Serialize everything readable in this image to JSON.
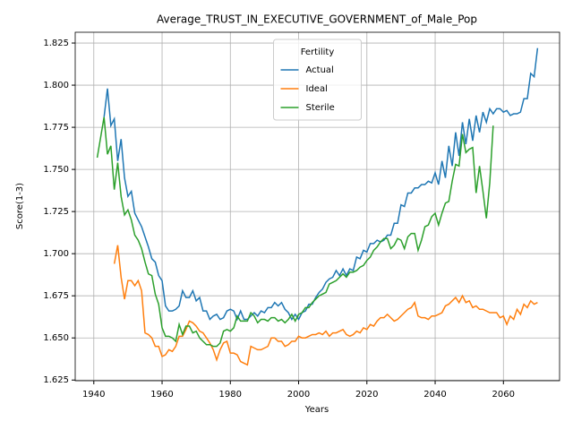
{
  "chart_data": {
    "type": "line",
    "title": "Average_TRUST_IN_EXECUTIVE_GOVERNMENT_of_Male_Pop",
    "xlabel": "Years",
    "ylabel": "Score(1-3)",
    "legend_title": "Fertility",
    "legend": "upper center",
    "grid": true,
    "xlim": [
      1934.55,
      2076.45
    ],
    "ylim": [
      1.6246,
      1.8314
    ],
    "xticks": [
      1940,
      1960,
      1980,
      2000,
      2020,
      2040,
      2060
    ],
    "yticks": [
      1.625,
      {
        "value": 1.65,
        "label": "1.650"
      },
      1.675,
      {
        "value": 1.7,
        "label": "1.700"
      },
      1.725,
      {
        "value": 1.75,
        "label": "1.750"
      },
      1.775,
      {
        "value": 1.8,
        "label": "1.800"
      },
      1.825
    ],
    "x": [
      1941,
      1942,
      1943,
      1944,
      1945,
      1946,
      1947,
      1948,
      1949,
      1950,
      1951,
      1952,
      1953,
      1954,
      1955,
      1956,
      1957,
      1958,
      1959,
      1960,
      1961,
      1962,
      1963,
      1964,
      1965,
      1966,
      1967,
      1968,
      1969,
      1970,
      1971,
      1972,
      1973,
      1974,
      1975,
      1976,
      1977,
      1978,
      1979,
      1980,
      1981,
      1982,
      1983,
      1984,
      1985,
      1986,
      1987,
      1988,
      1989,
      1990,
      1991,
      1992,
      1993,
      1994,
      1995,
      1996,
      1997,
      1998,
      1999,
      2000,
      2001,
      2002,
      2003,
      2004,
      2005,
      2006,
      2007,
      2008,
      2009,
      2010,
      2011,
      2012,
      2013,
      2014,
      2015,
      2016,
      2017,
      2018,
      2019,
      2020,
      2021,
      2022,
      2023,
      2024,
      2025,
      2026,
      2027,
      2028,
      2029,
      2030,
      2031,
      2032,
      2033,
      2034,
      2035,
      2036,
      2037,
      2038,
      2039,
      2040,
      2041,
      2042,
      2043,
      2044,
      2045,
      2046,
      2047,
      2048,
      2049,
      2050,
      2051,
      2052,
      2053,
      2054,
      2055,
      2056,
      2057,
      2058,
      2059,
      2060,
      2061,
      2062,
      2063,
      2064,
      2065,
      2066,
      2067,
      2068,
      2069,
      2070
    ],
    "series": [
      {
        "name": "Actual",
        "color": "#1f77b4",
        "values": [
          null,
          null,
          1.781,
          1.798,
          1.776,
          1.78,
          1.755,
          1.768,
          1.745,
          1.734,
          1.737,
          1.724,
          1.72,
          1.716,
          1.71,
          1.704,
          1.697,
          1.695,
          1.687,
          1.684,
          1.669,
          1.666,
          1.666,
          1.667,
          1.669,
          1.678,
          1.674,
          1.674,
          1.678,
          1.672,
          1.674,
          1.666,
          1.666,
          1.661,
          1.663,
          1.664,
          1.661,
          1.662,
          1.666,
          1.667,
          1.666,
          1.661,
          1.666,
          1.661,
          1.661,
          1.663,
          1.665,
          1.663,
          1.666,
          1.665,
          1.668,
          1.668,
          1.671,
          1.669,
          1.671,
          1.667,
          1.665,
          1.661,
          1.664,
          1.661,
          1.665,
          1.666,
          1.67,
          1.67,
          1.674,
          1.677,
          1.679,
          1.683,
          1.685,
          1.686,
          1.69,
          1.687,
          1.691,
          1.687,
          1.691,
          1.69,
          1.698,
          1.697,
          1.702,
          1.701,
          1.706,
          1.706,
          1.708,
          1.707,
          1.708,
          1.711,
          1.711,
          1.718,
          1.718,
          1.729,
          1.728,
          1.736,
          1.736,
          1.739,
          1.739,
          1.741,
          1.741,
          1.743,
          1.742,
          1.748,
          1.741,
          1.755,
          1.745,
          1.764,
          1.752,
          1.772,
          1.758,
          1.778,
          1.765,
          1.78,
          1.767,
          1.782,
          1.772,
          1.784,
          1.778,
          1.786,
          1.783,
          1.786,
          1.786,
          1.784,
          1.785,
          1.782,
          1.783,
          1.783,
          1.784,
          1.792,
          1.792,
          1.807,
          1.805,
          1.822
        ]
      },
      {
        "name": "Ideal",
        "color": "#ff7f0e",
        "values": [
          null,
          null,
          null,
          null,
          null,
          1.694,
          1.705,
          1.686,
          1.673,
          1.684,
          1.684,
          1.681,
          1.684,
          1.678,
          1.653,
          1.652,
          1.65,
          1.645,
          1.645,
          1.639,
          1.64,
          1.643,
          1.642,
          1.645,
          1.651,
          1.651,
          1.655,
          1.66,
          1.659,
          1.657,
          1.654,
          1.653,
          1.65,
          1.647,
          1.643,
          1.637,
          1.643,
          1.647,
          1.648,
          1.641,
          1.641,
          1.64,
          1.636,
          1.635,
          1.634,
          1.645,
          1.644,
          1.643,
          1.643,
          1.644,
          1.645,
          1.65,
          1.65,
          1.648,
          1.648,
          1.645,
          1.646,
          1.648,
          1.648,
          1.651,
          1.65,
          1.65,
          1.651,
          1.652,
          1.652,
          1.653,
          1.652,
          1.654,
          1.651,
          1.653,
          1.653,
          1.654,
          1.655,
          1.652,
          1.651,
          1.652,
          1.654,
          1.653,
          1.656,
          1.655,
          1.658,
          1.657,
          1.66,
          1.662,
          1.662,
          1.664,
          1.662,
          1.66,
          1.661,
          1.663,
          1.665,
          1.667,
          1.668,
          1.671,
          1.663,
          1.662,
          1.662,
          1.661,
          1.663,
          1.663,
          1.664,
          1.665,
          1.669,
          1.67,
          1.672,
          1.674,
          1.671,
          1.675,
          1.671,
          1.672,
          1.668,
          1.669,
          1.667,
          1.667,
          1.666,
          1.665,
          1.665,
          1.665,
          1.662,
          1.663,
          1.658,
          1.663,
          1.661,
          1.667,
          1.664,
          1.67,
          1.668,
          1.672,
          1.67,
          1.671
        ]
      },
      {
        "name": "Sterile",
        "color": "#2ca02c",
        "values": [
          1.757,
          1.769,
          1.781,
          1.759,
          1.764,
          1.738,
          1.754,
          1.734,
          1.723,
          1.726,
          1.72,
          1.711,
          1.708,
          1.703,
          1.695,
          1.688,
          1.687,
          1.676,
          1.67,
          1.656,
          1.651,
          1.651,
          1.65,
          1.648,
          1.658,
          1.652,
          1.657,
          1.657,
          1.653,
          1.654,
          1.65,
          1.648,
          1.646,
          1.646,
          1.645,
          1.645,
          1.647,
          1.654,
          1.655,
          1.654,
          1.656,
          1.663,
          1.66,
          1.66,
          1.66,
          1.665,
          1.663,
          1.659,
          1.661,
          1.661,
          1.66,
          1.662,
          1.662,
          1.66,
          1.661,
          1.659,
          1.661,
          1.664,
          1.66,
          1.664,
          1.665,
          1.668,
          1.668,
          1.671,
          1.673,
          1.675,
          1.676,
          1.677,
          1.682,
          1.683,
          1.684,
          1.686,
          1.688,
          1.686,
          1.689,
          1.689,
          1.69,
          1.692,
          1.693,
          1.696,
          1.698,
          1.702,
          1.704,
          1.707,
          1.709,
          1.709,
          1.703,
          1.705,
          1.709,
          1.708,
          1.703,
          1.71,
          1.712,
          1.712,
          1.702,
          1.708,
          1.716,
          1.717,
          1.722,
          1.724,
          1.717,
          1.724,
          1.73,
          1.731,
          1.743,
          1.753,
          1.752,
          1.771,
          1.76,
          1.762,
          1.763,
          1.736,
          1.752,
          1.737,
          1.721,
          1.742,
          1.776,
          null,
          null,
          null,
          null,
          null,
          null,
          null,
          null,
          null,
          null,
          null,
          null,
          null
        ]
      }
    ]
  }
}
